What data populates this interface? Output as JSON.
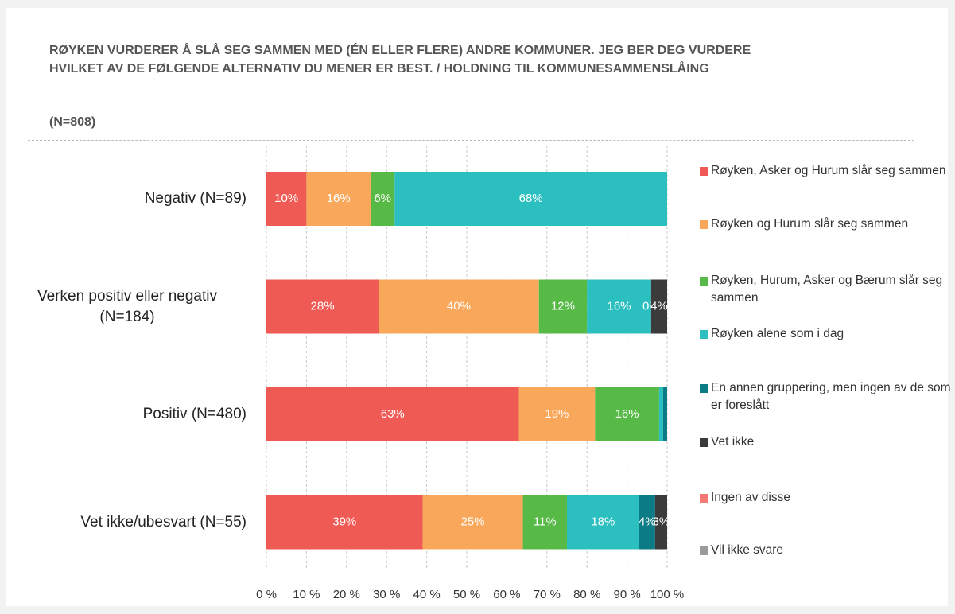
{
  "chart_data": {
    "type": "stacked_bar_horizontal",
    "title": "RØYKEN VURDERER Å SLÅ SEG SAMMEN MED (ÉN ELLER FLERE) ANDRE KOMMUNER. JEG BER DEG VURDERE HVILKET AV DE FØLGENDE ALTERNATIV DU MENER ER BEST. / HOLDNING TIL KOMMUNESAMMENSLÅING",
    "subtitle": "(N=808)",
    "categories": [
      "Negativ (N=89)",
      "Verken positiv eller negativ (N=184)",
      "Positiv (N=480)",
      "Vet ikke/ubesvart (N=55)"
    ],
    "series": [
      {
        "name": "Røyken, Asker og Hurum slår seg sammen",
        "color": "#f05a55",
        "values": [
          10,
          28,
          63,
          39
        ],
        "value_labels": [
          "10%",
          "28%",
          "63%",
          "39%"
        ]
      },
      {
        "name": "Røyken og Hurum slår seg sammen",
        "color": "#f9a85b",
        "values": [
          16,
          40,
          19,
          25
        ],
        "value_labels": [
          "16%",
          "40%",
          "19%",
          "25%"
        ]
      },
      {
        "name": "Røyken, Hurum, Asker og Bærum slår seg sammen",
        "color": "#57b946",
        "values": [
          6,
          12,
          16,
          11
        ],
        "value_labels": [
          "6%",
          "12%",
          "16%",
          "11%"
        ]
      },
      {
        "name": "Røyken alene som i dag",
        "color": "#2cbfbf",
        "values": [
          68,
          16,
          1,
          18
        ],
        "value_labels": [
          "68%",
          "16%",
          null,
          "18%"
        ]
      },
      {
        "name": "En annen gruppering, men ingen av de som er foreslått",
        "color": "#0b7b85",
        "values": [
          0,
          0,
          1,
          4
        ],
        "value_labels": [
          null,
          "0%",
          null,
          "4%"
        ]
      },
      {
        "name": "Vet ikke",
        "color": "#3b3b3b",
        "values": [
          0,
          4,
          0,
          3
        ],
        "value_labels": [
          null,
          "4%",
          null,
          "3%"
        ]
      },
      {
        "name": "Ingen av disse",
        "color": "#f27a72",
        "values": [
          0,
          0,
          0,
          0
        ],
        "value_labels": [
          null,
          null,
          null,
          null
        ]
      },
      {
        "name": "Vil ikke svare",
        "color": "#9a9a9a",
        "values": [
          0,
          0,
          0,
          0
        ],
        "value_labels": [
          null,
          null,
          null,
          null
        ]
      }
    ],
    "xlim": [
      0,
      100
    ],
    "xticks": [
      {
        "value": 0,
        "label": "0 %"
      },
      {
        "value": 10,
        "label": "10 %"
      },
      {
        "value": 20,
        "label": "20 %"
      },
      {
        "value": 30,
        "label": "30 %"
      },
      {
        "value": 40,
        "label": "40 %"
      },
      {
        "value": 50,
        "label": "50 %"
      },
      {
        "value": 60,
        "label": "60 %"
      },
      {
        "value": 70,
        "label": "70 %"
      },
      {
        "value": 80,
        "label": "80 %"
      },
      {
        "value": 90,
        "label": "90 %"
      },
      {
        "value": 100,
        "label": "100 %"
      }
    ],
    "grid": true,
    "legend": "right"
  }
}
